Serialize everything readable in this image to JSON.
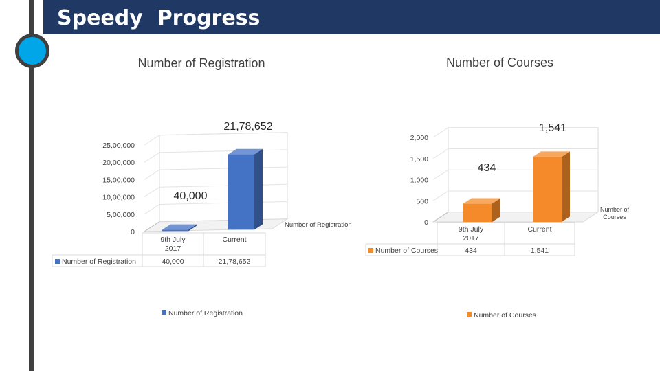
{
  "slide": {
    "title": "Speedy  Progress"
  },
  "chart_data": [
    {
      "type": "bar",
      "title": "Number of Registration",
      "categories": [
        "9th July 2017",
        "Current"
      ],
      "category_lines": [
        [
          "9th July",
          "2017"
        ],
        [
          "Current"
        ]
      ],
      "series": [
        {
          "name": "Number of Registration",
          "values": [
            40000,
            2178652
          ],
          "color": "#4472c4"
        }
      ],
      "value_labels": [
        "40,000",
        "21,78,652"
      ],
      "table_values": [
        "40,000",
        "21,78,652"
      ],
      "y_ticks": [
        0,
        500000,
        1000000,
        1500000,
        2000000,
        2500000
      ],
      "y_tick_labels": [
        "0",
        "5,00,000",
        "10,00,000",
        "15,00,000",
        "20,00,000",
        "25,00,000"
      ],
      "ylim": [
        0,
        2500000
      ],
      "side_legend": "Number of Registration",
      "bottom_legend": "Number of Registration",
      "grid": true
    },
    {
      "type": "bar",
      "title": "Number of Courses",
      "categories": [
        "9th July 2017",
        "Current"
      ],
      "category_lines": [
        [
          "9th July",
          "2017"
        ],
        [
          "Current"
        ]
      ],
      "series": [
        {
          "name": "Number of Courses",
          "values": [
            434,
            1541
          ],
          "color": "#f58a2a"
        }
      ],
      "value_labels": [
        "434",
        "1,541"
      ],
      "table_values": [
        "434",
        "1,541"
      ],
      "y_ticks": [
        0,
        500,
        1000,
        1500,
        2000
      ],
      "y_tick_labels": [
        "0",
        "500",
        "1,000",
        "1,500",
        "2,000"
      ],
      "ylim": [
        0,
        2000
      ],
      "side_legend_lines": [
        "Number of",
        "Courses"
      ],
      "bottom_legend": "Number of Courses",
      "grid": true
    }
  ]
}
